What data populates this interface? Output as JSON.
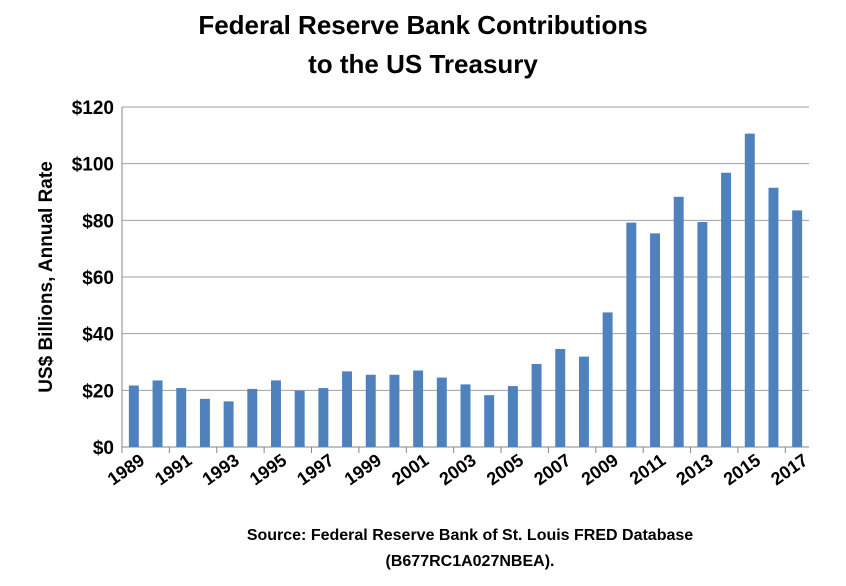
{
  "chart_data": {
    "type": "bar",
    "title": [
      "Federal Reserve Bank Contributions",
      "to the US Treasury"
    ],
    "xlabel": "",
    "ylabel": "US$ Billions, Annual Rate",
    "ylim": [
      0,
      120
    ],
    "yticks": [
      0,
      20,
      40,
      60,
      80,
      100,
      120
    ],
    "ytick_labels": [
      "$0",
      "$20",
      "$40",
      "$60",
      "$80",
      "$100",
      "$120"
    ],
    "grid": true,
    "categories": [
      "1989",
      "1990",
      "1991",
      "1992",
      "1993",
      "1994",
      "1995",
      "1996",
      "1997",
      "1998",
      "1999",
      "2000",
      "2001",
      "2002",
      "2003",
      "2004",
      "2005",
      "2006",
      "2007",
      "2008",
      "2009",
      "2010",
      "2011",
      "2012",
      "2013",
      "2014",
      "2015",
      "2016",
      "2017"
    ],
    "xtick_labels": [
      "1989",
      "1991",
      "1993",
      "1995",
      "1997",
      "1999",
      "2001",
      "2003",
      "2005",
      "2007",
      "2009",
      "2011",
      "2013",
      "2015",
      "2017"
    ],
    "values": [
      21.7,
      23.5,
      20.8,
      17.0,
      16.1,
      20.5,
      23.5,
      19.9,
      20.8,
      26.7,
      25.5,
      25.5,
      27.0,
      24.5,
      22.1,
      18.3,
      21.5,
      29.3,
      34.6,
      31.9,
      47.5,
      79.2,
      75.4,
      88.3,
      79.4,
      96.8,
      110.6,
      91.5,
      83.5
    ],
    "bar_color": "#4F81BD",
    "source": [
      "Source:  Federal Reserve Bank of St. Louis FRED Database",
      "(B677RC1A027NBEA)."
    ]
  }
}
